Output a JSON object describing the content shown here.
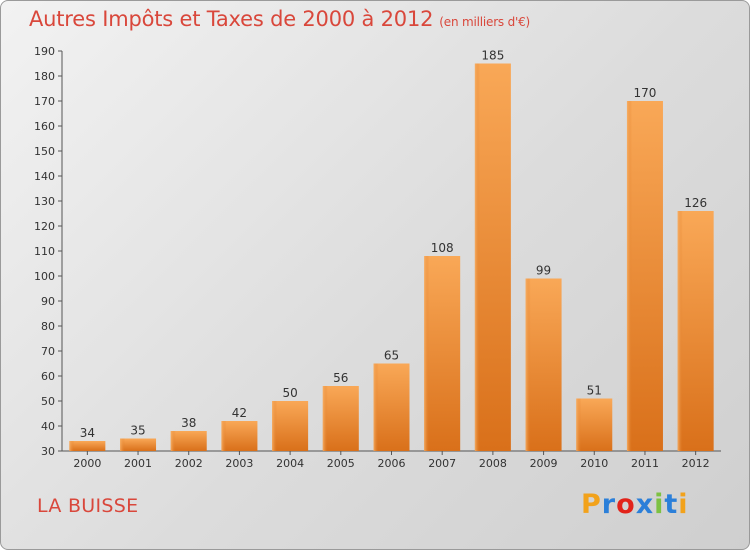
{
  "header": {
    "title": "Autres Impôts et Taxes de 2000 à 2012",
    "unit": "(en milliers d'€)"
  },
  "footer": {
    "place": "LA BUISSE",
    "logo_letters": [
      "P",
      "r",
      "o",
      "x",
      "i",
      "t",
      "i"
    ]
  },
  "colors": {
    "title": "#d9473b",
    "bar_light": "#f7a652",
    "bar_dark": "#d86e18",
    "axis": "#555555"
  },
  "chart_data": {
    "type": "bar",
    "title": "Autres Impôts et Taxes de 2000 à 2012",
    "subtitle": "(en milliers d'€)",
    "xlabel": "",
    "ylabel": "",
    "categories": [
      "2000",
      "2001",
      "2002",
      "2003",
      "2004",
      "2005",
      "2006",
      "2007",
      "2008",
      "2009",
      "2010",
      "2011",
      "2012"
    ],
    "values": [
      34,
      35,
      38,
      42,
      50,
      56,
      65,
      108,
      185,
      99,
      51,
      170,
      126
    ],
    "ylim": [
      30,
      190
    ],
    "yticks": [
      30,
      40,
      50,
      60,
      70,
      80,
      90,
      100,
      110,
      120,
      130,
      140,
      150,
      160,
      170,
      180,
      190
    ],
    "grid": false,
    "legend": "none"
  }
}
